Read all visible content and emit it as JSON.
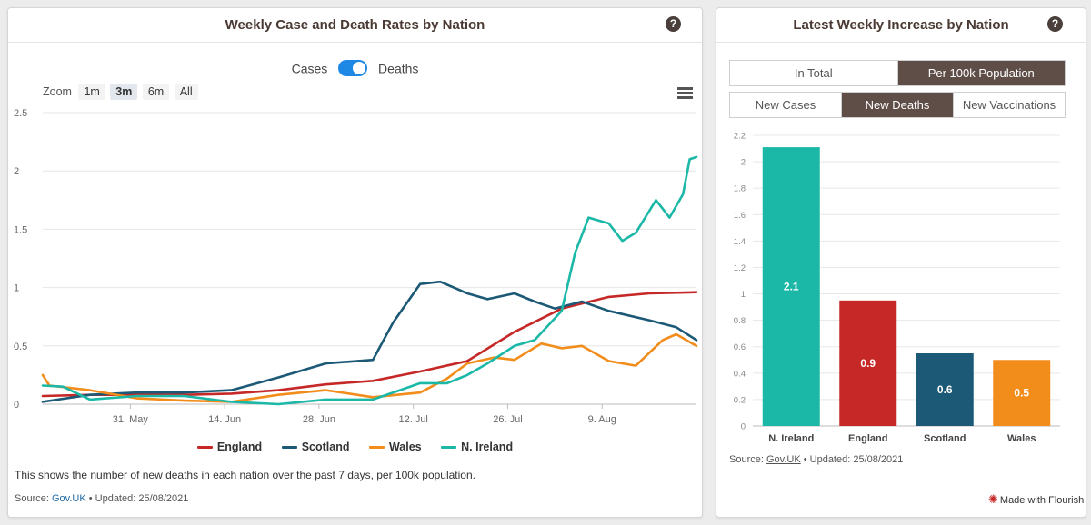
{
  "left_panel": {
    "title": "Weekly Case and Death Rates by Nation",
    "help_icon": "?",
    "toggle": {
      "left_label": "Cases",
      "right_label": "Deaths",
      "state": "Deaths"
    },
    "zoom": {
      "label": "Zoom",
      "options": [
        "1m",
        "3m",
        "6m",
        "All"
      ],
      "active": "3m"
    },
    "menu_icon": "hamburger-menu-icon",
    "note": "This shows the number of new deaths in each nation over the past 7 days, per 100k population.",
    "source": {
      "prefix": "Source: ",
      "link": "Gov.UK",
      "suffix": " • Updated: 25/08/2021"
    }
  },
  "right_panel": {
    "title": "Latest Weekly Increase by Nation",
    "help_icon": "?",
    "tabs_row1": [
      "In Total",
      "Per 100k Population"
    ],
    "tabs_row1_active": "Per 100k Population",
    "tabs_row2": [
      "New Cases",
      "New Deaths",
      "New Vaccinations"
    ],
    "tabs_row2_active": "New Deaths",
    "source": {
      "prefix": "Source: ",
      "link": "Gov.UK",
      "suffix": " • Updated: 25/08/2021"
    },
    "flourish": "Made with Flourish"
  },
  "chart_data": [
    {
      "type": "line",
      "title": "Weekly Case and Death Rates by Nation",
      "x_ticks": [
        "31. May",
        "14. Jun",
        "28. Jun",
        "12. Jul",
        "26. Jul",
        "9. Aug"
      ],
      "x_start": "2021-05-18",
      "ylim": [
        0,
        2.5
      ],
      "y_ticks": [
        "0",
        "0.5",
        "1",
        "1.5",
        "2",
        "2.5"
      ],
      "grid": true,
      "legend_position": "bottom",
      "series": [
        {
          "name": "England",
          "color": "#c62828",
          "x": [
            0,
            7,
            14,
            21,
            28,
            35,
            42,
            49,
            56,
            63,
            70,
            77,
            84,
            90,
            97
          ],
          "y": [
            0.07,
            0.08,
            0.08,
            0.08,
            0.09,
            0.12,
            0.17,
            0.2,
            0.28,
            0.37,
            0.62,
            0.82,
            0.92,
            0.95,
            0.96
          ]
        },
        {
          "name": "Scotland",
          "color": "#1b5976",
          "x": [
            0,
            7,
            14,
            21,
            28,
            35,
            42,
            49,
            52,
            56,
            59,
            63,
            66,
            70,
            73,
            76,
            80,
            84,
            90,
            94,
            97
          ],
          "y": [
            0.02,
            0.08,
            0.1,
            0.1,
            0.12,
            0.23,
            0.35,
            0.38,
            0.7,
            1.03,
            1.05,
            0.95,
            0.9,
            0.95,
            0.88,
            0.82,
            0.88,
            0.8,
            0.72,
            0.66,
            0.55
          ]
        },
        {
          "name": "Wales",
          "color": "#f28c1a",
          "x": [
            0,
            1,
            7,
            14,
            21,
            28,
            35,
            42,
            49,
            56,
            60,
            63,
            67,
            70,
            74,
            77,
            80,
            84,
            88,
            92,
            94,
            97
          ],
          "y": [
            0.25,
            0.16,
            0.12,
            0.05,
            0.03,
            0.02,
            0.08,
            0.12,
            0.06,
            0.1,
            0.22,
            0.35,
            0.4,
            0.38,
            0.52,
            0.48,
            0.5,
            0.37,
            0.33,
            0.55,
            0.6,
            0.5
          ]
        },
        {
          "name": "N. Ireland",
          "color": "#1cb8a7",
          "x": [
            0,
            3,
            7,
            14,
            21,
            28,
            35,
            42,
            49,
            53,
            56,
            60,
            63,
            66,
            70,
            73,
            77,
            79,
            81,
            84,
            86,
            88,
            91,
            93,
            95,
            96,
            97
          ],
          "y": [
            0.16,
            0.15,
            0.04,
            0.07,
            0.07,
            0.02,
            0.0,
            0.04,
            0.04,
            0.12,
            0.18,
            0.18,
            0.25,
            0.35,
            0.5,
            0.55,
            0.8,
            1.3,
            1.6,
            1.55,
            1.4,
            1.47,
            1.75,
            1.6,
            1.8,
            2.1,
            2.12
          ]
        }
      ]
    },
    {
      "type": "bar",
      "title": "Latest Weekly Increase by Nation",
      "categories": [
        "N. Ireland",
        "England",
        "Scotland",
        "Wales"
      ],
      "values": [
        2.11,
        0.95,
        0.55,
        0.5
      ],
      "labels": [
        "2.1",
        "0.9",
        "0.6",
        "0.5"
      ],
      "colors": [
        "#1cb8a7",
        "#c62828",
        "#1b5976",
        "#f28c1a"
      ],
      "ylim": [
        0,
        2.2
      ],
      "y_ticks": [
        "0",
        "0.2",
        "0.4",
        "0.6",
        "0.8",
        "1",
        "1.2",
        "1.4",
        "1.6",
        "1.8",
        "2",
        "2.2"
      ],
      "grid": true
    }
  ]
}
